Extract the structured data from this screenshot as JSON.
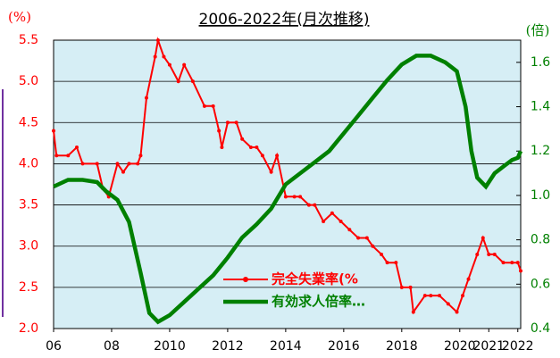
{
  "chart_data": {
    "type": "line",
    "title": "2006-2022年(月次推移)",
    "y_label": "(%)",
    "y2_label": "(倍)",
    "xlim": [
      2006,
      2022.1
    ],
    "xticks": [
      {
        "value": 2006,
        "label": "06"
      },
      {
        "value": 2008,
        "label": "08"
      },
      2010,
      2012,
      2014,
      2016,
      2018,
      2020,
      2021,
      2022
    ],
    "ylim": [
      2.0,
      5.5
    ],
    "yticks": [
      {
        "value": 2.0,
        "label": "2.0"
      },
      2.5,
      {
        "value": 3.0,
        "label": "3.0"
      },
      3.5,
      {
        "value": 4.0,
        "label": "4.0"
      },
      4.5,
      {
        "value": 5.0,
        "label": "5.0"
      },
      5.5
    ],
    "y2lim": [
      0.4,
      1.7
    ],
    "y2ticks": [
      0.4,
      0.6,
      0.8,
      {
        "value": 1.0,
        "label": "1.0"
      },
      1.2,
      1.4,
      1.6
    ],
    "grid": true,
    "series": [
      {
        "name": "完全失業率(%",
        "color": "#ff0000",
        "axis": "y",
        "x": [
          2006.0,
          2006.1,
          2006.5,
          2006.8,
          2007.0,
          2007.5,
          2007.7,
          2007.9,
          2008.2,
          2008.4,
          2008.6,
          2008.9,
          2009.0,
          2009.2,
          2009.5,
          2009.6,
          2009.8,
          2010.0,
          2010.3,
          2010.5,
          2010.8,
          2011.2,
          2011.5,
          2011.7,
          2011.8,
          2012.0,
          2012.3,
          2012.5,
          2012.8,
          2013.0,
          2013.2,
          2013.5,
          2013.7,
          2014.0,
          2014.3,
          2014.5,
          2014.8,
          2015.0,
          2015.3,
          2015.6,
          2015.9,
          2016.2,
          2016.5,
          2016.8,
          2017.0,
          2017.3,
          2017.5,
          2017.8,
          2018.0,
          2018.3,
          2018.4,
          2018.8,
          2019.0,
          2019.3,
          2019.6,
          2019.9,
          2020.1,
          2020.3,
          2020.6,
          2020.8,
          2021.0,
          2021.2,
          2021.5,
          2021.8,
          2022.0,
          2022.1
        ],
        "values": [
          4.4,
          4.1,
          4.1,
          4.2,
          4.0,
          4.0,
          3.7,
          3.6,
          4.0,
          3.9,
          4.0,
          4.0,
          4.1,
          4.8,
          5.3,
          5.5,
          5.3,
          5.2,
          5.0,
          5.2,
          5.0,
          4.7,
          4.7,
          4.4,
          4.2,
          4.5,
          4.5,
          4.3,
          4.2,
          4.2,
          4.1,
          3.9,
          4.1,
          3.6,
          3.6,
          3.6,
          3.5,
          3.5,
          3.3,
          3.4,
          3.3,
          3.2,
          3.1,
          3.1,
          3.0,
          2.9,
          2.8,
          2.8,
          2.5,
          2.5,
          2.2,
          2.4,
          2.4,
          2.4,
          2.3,
          2.2,
          2.4,
          2.6,
          2.9,
          3.1,
          2.9,
          2.9,
          2.8,
          2.8,
          2.8,
          2.7
        ]
      },
      {
        "name": "有効求人倍率…",
        "color": "#008000",
        "axis": "y2",
        "x": [
          2006.0,
          2006.5,
          2007.0,
          2007.5,
          2007.8,
          2008.2,
          2008.6,
          2009.0,
          2009.3,
          2009.6,
          2010.0,
          2010.5,
          2011.0,
          2011.5,
          2012.0,
          2012.5,
          2013.0,
          2013.5,
          2014.0,
          2014.5,
          2015.0,
          2015.5,
          2016.0,
          2016.5,
          2017.0,
          2017.5,
          2018.0,
          2018.5,
          2019.0,
          2019.5,
          2019.9,
          2020.2,
          2020.4,
          2020.6,
          2020.9,
          2021.2,
          2021.5,
          2021.8,
          2022.0,
          2022.1
        ],
        "values": [
          1.04,
          1.07,
          1.07,
          1.06,
          1.02,
          0.98,
          0.88,
          0.65,
          0.47,
          0.43,
          0.46,
          0.52,
          0.58,
          0.64,
          0.72,
          0.81,
          0.87,
          0.94,
          1.05,
          1.1,
          1.15,
          1.2,
          1.28,
          1.36,
          1.44,
          1.52,
          1.59,
          1.63,
          1.63,
          1.6,
          1.56,
          1.4,
          1.2,
          1.08,
          1.04,
          1.1,
          1.13,
          1.16,
          1.17,
          1.2
        ]
      }
    ]
  }
}
